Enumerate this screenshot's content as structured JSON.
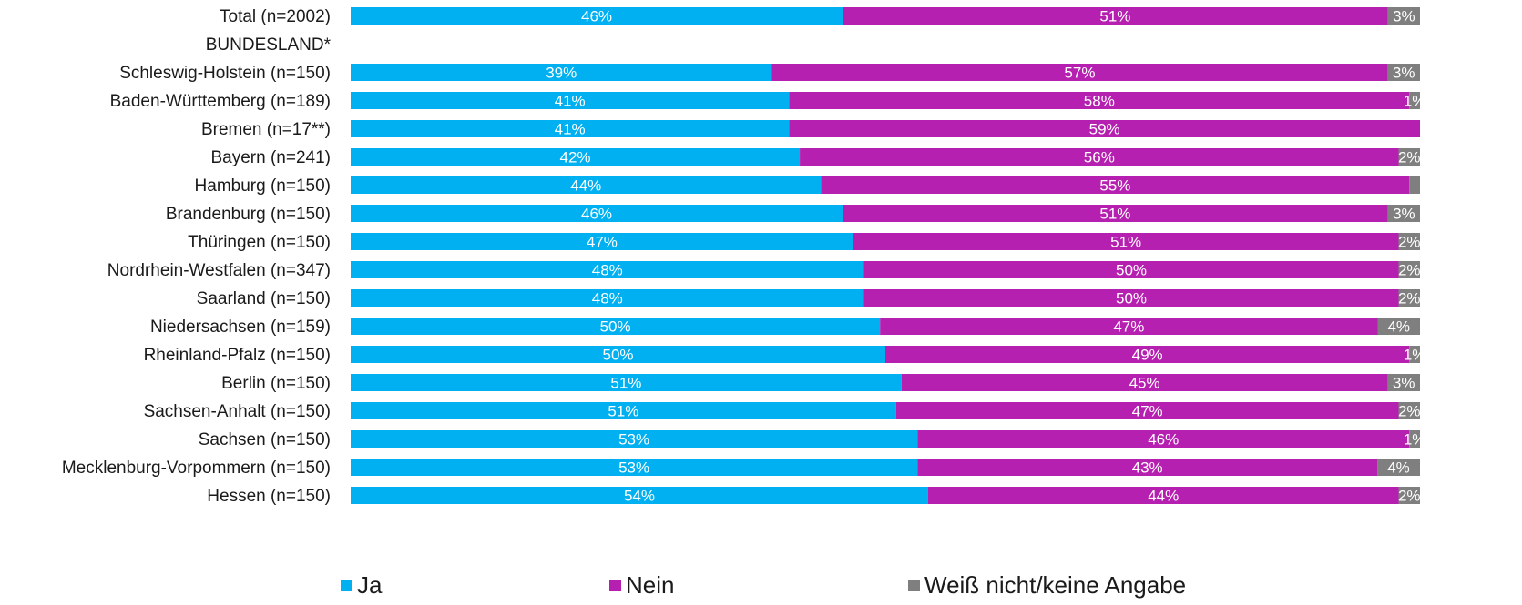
{
  "chart_data": {
    "type": "bar",
    "orientation": "horizontal",
    "stacked": true,
    "categories": [
      "Total (n=2002)",
      "BUNDESLAND*",
      "Schleswig-Holstein (n=150)",
      "Baden-Württemberg (n=189)",
      "Bremen (n=17**)",
      "Bayern (n=241)",
      "Hamburg (n=150)",
      "Brandenburg (n=150)",
      "Thüringen (n=150)",
      "Nordrhein-Westfalen (n=347)",
      "Saarland (n=150)",
      "Niedersachsen (n=159)",
      "Rheinland-Pfalz (n=150)",
      "Berlin (n=150)",
      "Sachsen-Anhalt (n=150)",
      "Sachsen (n=150)",
      "Mecklenburg-Vorpommern (n=150)",
      "Hessen (n=150)"
    ],
    "series": [
      {
        "name": "Ja",
        "color": "#00b0f0",
        "values": [
          46,
          null,
          39,
          41,
          41,
          42,
          44,
          46,
          47,
          48,
          48,
          50,
          50,
          51,
          51,
          53,
          53,
          54
        ],
        "labels": [
          "46%",
          "",
          "39%",
          "41%",
          "41%",
          "42%",
          "44%",
          "46%",
          "47%",
          "48%",
          "48%",
          "50%",
          "50%",
          "51%",
          "51%",
          "53%",
          "53%",
          "54%"
        ]
      },
      {
        "name": "Nein",
        "color": "#b620b0",
        "values": [
          51,
          null,
          57,
          58,
          59,
          56,
          55,
          51,
          51,
          50,
          50,
          47,
          49,
          45,
          47,
          46,
          43,
          44
        ],
        "labels": [
          "51%",
          "",
          "57%",
          "58%",
          "59%",
          "56%",
          "55%",
          "51%",
          "51%",
          "50%",
          "50%",
          "47%",
          "49%",
          "45%",
          "47%",
          "46%",
          "43%",
          "44%"
        ]
      },
      {
        "name": "Weiß nicht/keine Angabe",
        "color": "#7f7f7f",
        "values": [
          3,
          null,
          3,
          1,
          0,
          2,
          1,
          3,
          2,
          2,
          2,
          4,
          1,
          3,
          2,
          1,
          4,
          2
        ],
        "labels": [
          "3%",
          "",
          "3%",
          "1%",
          "",
          "2%",
          "",
          "3%",
          "2%",
          "2%",
          "2%",
          "4%",
          "1%",
          "3%",
          "2%",
          "1%",
          "4%",
          "2%"
        ]
      }
    ],
    "xlim": [
      0,
      100
    ],
    "grid": false,
    "legend_position": "bottom"
  }
}
